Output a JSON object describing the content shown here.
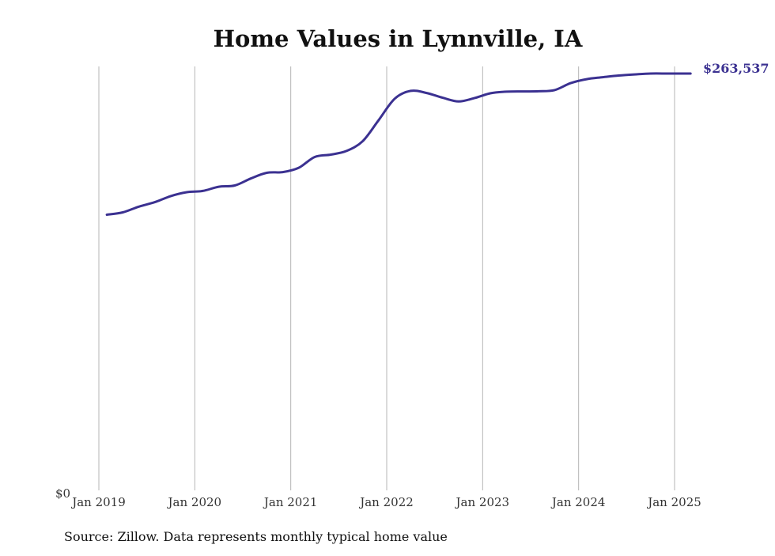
{
  "chart_data": {
    "type": "line",
    "title": "Home Values in Lynnville, IA",
    "xlabel": "",
    "ylabel": "",
    "x_ticks": [
      "Jan 2019",
      "Jan 2020",
      "Jan 2021",
      "Jan 2022",
      "Jan 2023",
      "Jan 2024",
      "Jan 2025"
    ],
    "y_ticks": [
      "$0"
    ],
    "ylim": [
      0,
      263537
    ],
    "xlim": [
      "2019-01",
      "2025-03"
    ],
    "grid": "vertical",
    "line_color": "#3b3191",
    "end_label": "$263,537",
    "source": "Source: Zillow. Data represents monthly typical home value",
    "series": [
      {
        "name": "",
        "x": [
          "2019-02",
          "2019-04",
          "2019-06",
          "2019-08",
          "2019-10",
          "2019-12",
          "2020-02",
          "2020-04",
          "2020-06",
          "2020-08",
          "2020-10",
          "2020-12",
          "2021-02",
          "2021-04",
          "2021-06",
          "2021-08",
          "2021-10",
          "2021-12",
          "2022-02",
          "2022-04",
          "2022-06",
          "2022-08",
          "2022-10",
          "2022-12",
          "2023-02",
          "2023-04",
          "2023-06",
          "2023-08",
          "2023-10",
          "2023-12",
          "2024-02",
          "2024-04",
          "2024-06",
          "2024-08",
          "2024-10",
          "2024-12",
          "2025-01",
          "2025-02",
          "2025-03"
        ],
        "values": [
          174250,
          175760,
          179390,
          182220,
          186080,
          188520,
          189320,
          192000,
          192760,
          197180,
          200800,
          201240,
          203960,
          210800,
          212260,
          214640,
          220830,
          234140,
          247650,
          252570,
          251250,
          248240,
          245900,
          248090,
          251110,
          252100,
          252220,
          252350,
          253090,
          257470,
          259990,
          261220,
          262310,
          263000,
          263537,
          263537,
          263537,
          263537,
          263537
        ]
      }
    ]
  }
}
